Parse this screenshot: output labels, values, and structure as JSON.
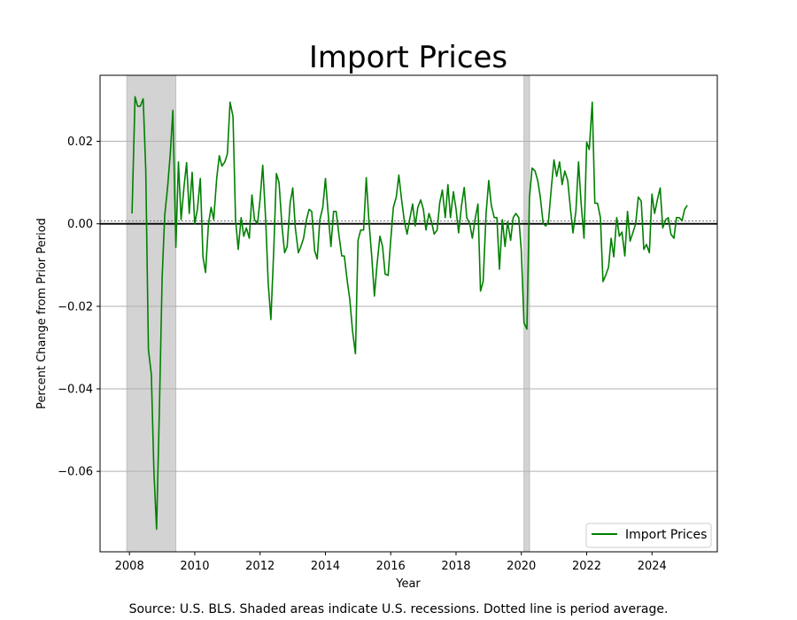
{
  "chart_data": {
    "type": "line",
    "title": "Import Prices",
    "xlabel": "Year",
    "ylabel": "Percent Change from Prior Period",
    "xlim": [
      2007.1,
      2026.0
    ],
    "ylim": [
      -0.0795,
      0.036
    ],
    "x_ticks": [
      2008,
      2010,
      2012,
      2014,
      2016,
      2018,
      2020,
      2022,
      2024
    ],
    "x_tick_labels": [
      "2008",
      "2010",
      "2012",
      "2014",
      "2016",
      "2018",
      "2020",
      "2022",
      "2024"
    ],
    "y_ticks": [
      -0.06,
      -0.04,
      -0.02,
      0.0,
      0.02
    ],
    "y_tick_labels": [
      "−0.06",
      "−0.04",
      "−0.02",
      "0.00",
      "0.02"
    ],
    "grid": "horizontal",
    "legend_position": "bottom-right",
    "zero_line": 0.0,
    "average_line": 0.0007,
    "recessions": [
      {
        "start": 2007.92,
        "end": 2009.42
      },
      {
        "start": 2020.08,
        "end": 2020.25
      }
    ],
    "series": [
      {
        "name": "Import Prices",
        "color": "#008000",
        "points": [
          [
            2008.08,
            0.0025
          ],
          [
            2008.17,
            0.0308
          ],
          [
            2008.25,
            0.0285
          ],
          [
            2008.33,
            0.0285
          ],
          [
            2008.42,
            0.0303
          ],
          [
            2008.5,
            0.013
          ],
          [
            2008.58,
            -0.0305
          ],
          [
            2008.67,
            -0.0365
          ],
          [
            2008.75,
            -0.06
          ],
          [
            2008.83,
            -0.074
          ],
          [
            2008.92,
            -0.044
          ],
          [
            2009.0,
            -0.013
          ],
          [
            2009.08,
            0.002
          ],
          [
            2009.17,
            0.009
          ],
          [
            2009.25,
            0.017
          ],
          [
            2009.33,
            0.0275
          ],
          [
            2009.42,
            -0.0057
          ],
          [
            2009.5,
            0.015
          ],
          [
            2009.58,
            0.001
          ],
          [
            2009.67,
            0.009
          ],
          [
            2009.75,
            0.0148
          ],
          [
            2009.83,
            0.0025
          ],
          [
            2009.92,
            0.0125
          ],
          [
            2010.0,
            0.0
          ],
          [
            2010.08,
            0.0035
          ],
          [
            2010.17,
            0.011
          ],
          [
            2010.25,
            -0.008
          ],
          [
            2010.33,
            -0.0118
          ],
          [
            2010.42,
            0.0
          ],
          [
            2010.5,
            0.004
          ],
          [
            2010.58,
            0.001
          ],
          [
            2010.67,
            0.011
          ],
          [
            2010.75,
            0.0165
          ],
          [
            2010.83,
            0.014
          ],
          [
            2010.92,
            0.015
          ],
          [
            2011.0,
            0.017
          ],
          [
            2011.08,
            0.0295
          ],
          [
            2011.17,
            0.026
          ],
          [
            2011.25,
            0.001
          ],
          [
            2011.33,
            -0.0062
          ],
          [
            2011.42,
            0.0015
          ],
          [
            2011.5,
            -0.003
          ],
          [
            2011.58,
            -0.001
          ],
          [
            2011.67,
            -0.0035
          ],
          [
            2011.75,
            0.007
          ],
          [
            2011.83,
            0.001
          ],
          [
            2011.92,
            0.0
          ],
          [
            2012.0,
            0.006
          ],
          [
            2012.08,
            0.0142
          ],
          [
            2012.17,
            0.001
          ],
          [
            2012.25,
            -0.0145
          ],
          [
            2012.33,
            -0.0232
          ],
          [
            2012.42,
            -0.006
          ],
          [
            2012.5,
            0.0122
          ],
          [
            2012.58,
            0.01
          ],
          [
            2012.67,
            -0.0005
          ],
          [
            2012.75,
            -0.007
          ],
          [
            2012.83,
            -0.0055
          ],
          [
            2012.92,
            0.005
          ],
          [
            2013.0,
            0.0087
          ],
          [
            2013.08,
            -0.001
          ],
          [
            2013.17,
            -0.007
          ],
          [
            2013.25,
            -0.0055
          ],
          [
            2013.33,
            -0.0035
          ],
          [
            2013.42,
            0.001
          ],
          [
            2013.5,
            0.0035
          ],
          [
            2013.58,
            0.003
          ],
          [
            2013.67,
            -0.0065
          ],
          [
            2013.75,
            -0.0085
          ],
          [
            2013.83,
            0.001
          ],
          [
            2013.92,
            0.004
          ],
          [
            2014.0,
            0.011
          ],
          [
            2014.08,
            0.003
          ],
          [
            2014.17,
            -0.0055
          ],
          [
            2014.25,
            0.003
          ],
          [
            2014.33,
            0.003
          ],
          [
            2014.42,
            -0.003
          ],
          [
            2014.5,
            -0.0078
          ],
          [
            2014.58,
            -0.0078
          ],
          [
            2014.67,
            -0.014
          ],
          [
            2014.75,
            -0.0185
          ],
          [
            2014.83,
            -0.026
          ],
          [
            2014.92,
            -0.0315
          ],
          [
            2015.0,
            -0.004
          ],
          [
            2015.08,
            -0.0015
          ],
          [
            2015.17,
            -0.0015
          ],
          [
            2015.25,
            0.0112
          ],
          [
            2015.33,
            0.001
          ],
          [
            2015.42,
            -0.008
          ],
          [
            2015.5,
            -0.0175
          ],
          [
            2015.58,
            -0.01
          ],
          [
            2015.67,
            -0.003
          ],
          [
            2015.75,
            -0.0055
          ],
          [
            2015.83,
            -0.0122
          ],
          [
            2015.92,
            -0.0125
          ],
          [
            2016.0,
            -0.004
          ],
          [
            2016.08,
            0.004
          ],
          [
            2016.17,
            0.0065
          ],
          [
            2016.25,
            0.0118
          ],
          [
            2016.33,
            0.006
          ],
          [
            2016.42,
            0.0005
          ],
          [
            2016.5,
            -0.0025
          ],
          [
            2016.58,
            0.001
          ],
          [
            2016.67,
            0.0048
          ],
          [
            2016.75,
            -0.0005
          ],
          [
            2016.83,
            0.004
          ],
          [
            2016.92,
            0.0058
          ],
          [
            2017.0,
            0.0035
          ],
          [
            2017.08,
            -0.0015
          ],
          [
            2017.17,
            0.0025
          ],
          [
            2017.25,
            0.0005
          ],
          [
            2017.33,
            -0.0025
          ],
          [
            2017.42,
            -0.0015
          ],
          [
            2017.5,
            0.005
          ],
          [
            2017.58,
            0.0082
          ],
          [
            2017.67,
            0.0015
          ],
          [
            2017.75,
            0.0095
          ],
          [
            2017.83,
            0.0015
          ],
          [
            2017.92,
            0.0078
          ],
          [
            2018.0,
            0.0035
          ],
          [
            2018.08,
            -0.0022
          ],
          [
            2018.17,
            0.0045
          ],
          [
            2018.25,
            0.0088
          ],
          [
            2018.33,
            0.0015
          ],
          [
            2018.42,
            0.0
          ],
          [
            2018.5,
            -0.0035
          ],
          [
            2018.58,
            0.001
          ],
          [
            2018.67,
            0.0048
          ],
          [
            2018.75,
            -0.0163
          ],
          [
            2018.83,
            -0.014
          ],
          [
            2018.92,
            0.0025
          ],
          [
            2019.0,
            0.0105
          ],
          [
            2019.08,
            0.0045
          ],
          [
            2019.17,
            0.0015
          ],
          [
            2019.25,
            0.0015
          ],
          [
            2019.33,
            -0.011
          ],
          [
            2019.42,
            0.001
          ],
          [
            2019.5,
            -0.0055
          ],
          [
            2019.58,
            0.0005
          ],
          [
            2019.67,
            -0.004
          ],
          [
            2019.75,
            0.0015
          ],
          [
            2019.83,
            0.0025
          ],
          [
            2019.92,
            0.0015
          ],
          [
            2020.0,
            -0.0065
          ],
          [
            2020.08,
            -0.024
          ],
          [
            2020.17,
            -0.0255
          ],
          [
            2020.25,
            0.0065
          ],
          [
            2020.33,
            0.0135
          ],
          [
            2020.42,
            0.0128
          ],
          [
            2020.5,
            0.0105
          ],
          [
            2020.58,
            0.0065
          ],
          [
            2020.67,
            0.0
          ],
          [
            2020.75,
            -0.0005
          ],
          [
            2020.83,
            0.0005
          ],
          [
            2020.92,
            0.009
          ],
          [
            2021.0,
            0.0155
          ],
          [
            2021.08,
            0.0115
          ],
          [
            2021.17,
            0.015
          ],
          [
            2021.25,
            0.0095
          ],
          [
            2021.33,
            0.0128
          ],
          [
            2021.42,
            0.0105
          ],
          [
            2021.5,
            0.004
          ],
          [
            2021.58,
            -0.0022
          ],
          [
            2021.67,
            0.003
          ],
          [
            2021.75,
            0.015
          ],
          [
            2021.83,
            0.005
          ],
          [
            2021.92,
            -0.0035
          ],
          [
            2022.0,
            0.0198
          ],
          [
            2022.08,
            0.018
          ],
          [
            2022.17,
            0.0295
          ],
          [
            2022.25,
            0.005
          ],
          [
            2022.33,
            0.005
          ],
          [
            2022.42,
            0.0015
          ],
          [
            2022.5,
            -0.014
          ],
          [
            2022.58,
            -0.0125
          ],
          [
            2022.67,
            -0.0105
          ],
          [
            2022.75,
            -0.0035
          ],
          [
            2022.83,
            -0.008
          ],
          [
            2022.92,
            0.0015
          ],
          [
            2023.0,
            -0.003
          ],
          [
            2023.08,
            -0.002
          ],
          [
            2023.17,
            -0.0078
          ],
          [
            2023.25,
            0.003
          ],
          [
            2023.33,
            -0.0042
          ],
          [
            2023.42,
            -0.002
          ],
          [
            2023.5,
            0.0
          ],
          [
            2023.58,
            0.0065
          ],
          [
            2023.67,
            0.0055
          ],
          [
            2023.75,
            -0.0062
          ],
          [
            2023.83,
            -0.005
          ],
          [
            2023.92,
            -0.007
          ],
          [
            2024.0,
            0.0072
          ],
          [
            2024.08,
            0.0025
          ],
          [
            2024.17,
            0.006
          ],
          [
            2024.25,
            0.0087
          ],
          [
            2024.33,
            -0.001
          ],
          [
            2024.42,
            0.001
          ],
          [
            2024.5,
            0.0015
          ],
          [
            2024.58,
            -0.0025
          ],
          [
            2024.67,
            -0.0035
          ],
          [
            2024.75,
            0.0015
          ],
          [
            2024.83,
            0.0015
          ],
          [
            2024.92,
            0.0008
          ],
          [
            2025.0,
            0.0035
          ],
          [
            2025.08,
            0.0045
          ]
        ]
      }
    ]
  },
  "legend": {
    "label": "Import Prices"
  },
  "footer": {
    "source_note": "Source: U.S. BLS. Shaded areas indicate U.S. recessions. Dotted line is period average."
  }
}
